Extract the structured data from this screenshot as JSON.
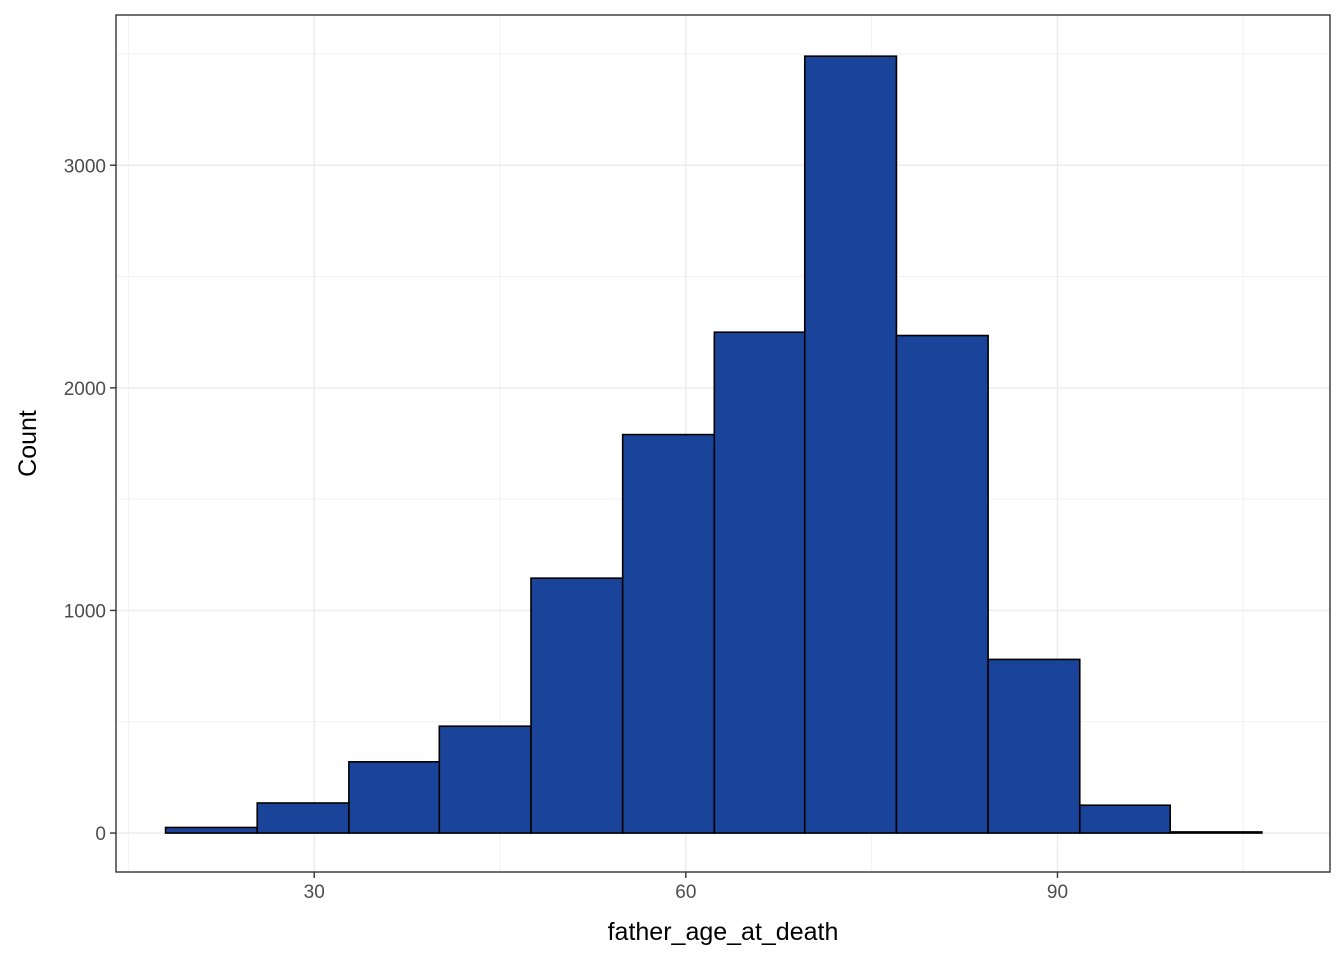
{
  "chart_data": {
    "type": "bar",
    "xlabel": "father_age_at_death",
    "ylabel": "Count",
    "xlim": [
      14,
      112
    ],
    "ylim": [
      -175,
      3675
    ],
    "x_ticks": [
      30,
      60,
      90
    ],
    "x_minor_ticks": [
      15,
      45,
      75,
      105
    ],
    "y_ticks": [
      0,
      1000,
      2000,
      3000
    ],
    "y_minor_ticks": [
      500,
      1500,
      2500,
      3500
    ],
    "grid": true,
    "bin_width": 7.375,
    "bins": [
      {
        "x0": 18.0,
        "x1": 25.4,
        "count": 25
      },
      {
        "x0": 25.4,
        "x1": 32.8,
        "count": 135
      },
      {
        "x0": 32.8,
        "x1": 40.1,
        "count": 320
      },
      {
        "x0": 40.1,
        "x1": 47.5,
        "count": 480
      },
      {
        "x0": 47.5,
        "x1": 54.9,
        "count": 1145
      },
      {
        "x0": 54.9,
        "x1": 62.3,
        "count": 1790
      },
      {
        "x0": 62.3,
        "x1": 69.6,
        "count": 2250
      },
      {
        "x0": 69.6,
        "x1": 77.0,
        "count": 3490
      },
      {
        "x0": 77.0,
        "x1": 84.4,
        "count": 2235
      },
      {
        "x0": 84.4,
        "x1": 91.8,
        "count": 780
      },
      {
        "x0": 91.8,
        "x1": 99.1,
        "count": 125
      },
      {
        "x0": 99.1,
        "x1": 106.5,
        "count": 5
      }
    ],
    "fill_color": "#1a4499",
    "outline_color": "#000000",
    "grid_color": "#ebebeb"
  }
}
